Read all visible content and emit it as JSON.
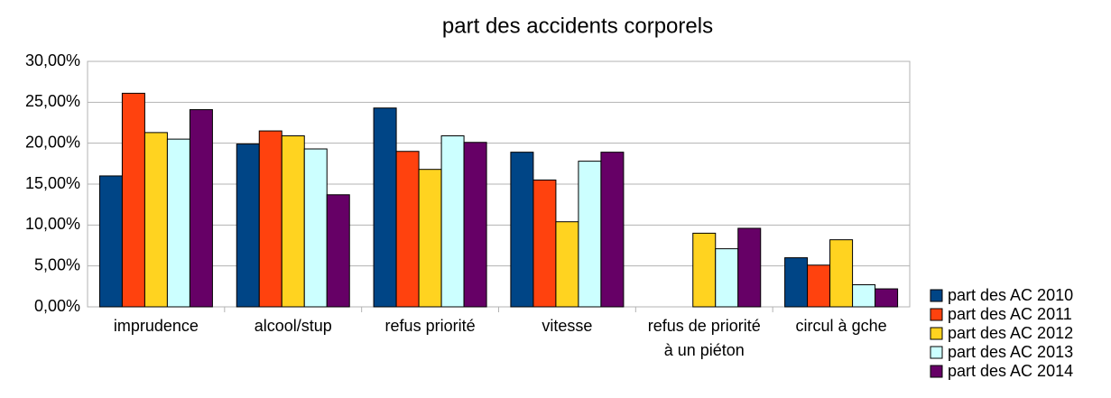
{
  "chart_data": {
    "type": "bar",
    "title": "part des accidents corporels",
    "categories": [
      "imprudence",
      "alcool/stup",
      "refus priorité",
      "vitesse",
      "refus de priorité à un piéton",
      "circul à gche"
    ],
    "series": [
      {
        "name": "part des AC 2010",
        "color": "#004586",
        "values": [
          16.0,
          19.9,
          24.3,
          18.9,
          0,
          6.0
        ]
      },
      {
        "name": "part des AC 2011",
        "color": "#ff420e",
        "values": [
          26.1,
          21.5,
          19.0,
          15.5,
          0,
          5.1
        ]
      },
      {
        "name": "part des AC 2012",
        "color": "#ffd320",
        "values": [
          21.3,
          20.9,
          16.8,
          10.4,
          9.0,
          8.2
        ]
      },
      {
        "name": "part des AC 2013",
        "color": "#ccffff",
        "values": [
          20.5,
          19.3,
          20.9,
          17.8,
          7.1,
          2.7
        ]
      },
      {
        "name": "part des AC 2014",
        "color": "#660066",
        "values": [
          24.1,
          13.7,
          20.1,
          18.9,
          9.6,
          2.2
        ]
      }
    ],
    "ylim": [
      0,
      30
    ],
    "yticks": [
      {
        "value": 0,
        "label": "0,00%"
      },
      {
        "value": 5,
        "label": "5,00%"
      },
      {
        "value": 10,
        "label": "10,00%"
      },
      {
        "value": 15,
        "label": "15,00%"
      },
      {
        "value": 20,
        "label": "20,00%"
      },
      {
        "value": 25,
        "label": "25,00%"
      },
      {
        "value": 30,
        "label": "30,00%"
      }
    ],
    "grid": true,
    "legend": "right"
  }
}
